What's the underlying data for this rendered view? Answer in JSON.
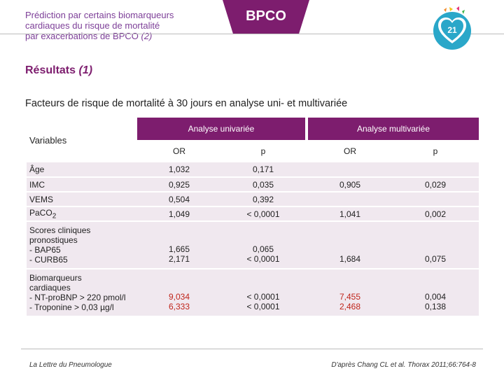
{
  "header": {
    "subtitle_line1": "Prédiction par certains biomarqueurs",
    "subtitle_line2": "cardiaques du risque de mortalité",
    "subtitle_line3": "par exacerbations de BPCO",
    "subtitle_suffix": "(2)",
    "tab_label": "BPCO",
    "page_number": "21"
  },
  "section": {
    "title": "Résultats",
    "title_suffix": "(1)",
    "caption": "Facteurs de risque de mortalité à 30 jours en analyse uni- et multivariée"
  },
  "table": {
    "var_header": "Variables",
    "group_univariate": "Analyse univariée",
    "group_multivariate": "Analyse multivariée",
    "col_or": "OR",
    "col_p": "p",
    "rows": [
      {
        "variable": "Âge",
        "u_or": "1,032",
        "u_p": "0,171",
        "m_or": "",
        "m_p": ""
      },
      {
        "variable": "IMC",
        "u_or": "0,925",
        "u_p": "0,035",
        "m_or": "0,905",
        "m_p": "0,029"
      },
      {
        "variable": "VEMS",
        "u_or": "0,504",
        "u_p": "0,392",
        "m_or": "",
        "m_p": ""
      },
      {
        "variable": "PaCO",
        "variable_sub": "2",
        "u_or": "1,049",
        "u_p": "< 0,0001",
        "m_or": "1,041",
        "m_p": "0,002"
      },
      {
        "variable": "Scores cliniques\npronostiques\n- BAP65\n- CURB65",
        "u_or": "1,665\n2,171",
        "u_p": "0,065\n< 0,0001",
        "m_or": "1,684",
        "m_p": "0,075"
      },
      {
        "variable": "Biomarqueurs\ncardiaques\n- NT-proBNP > 220 pmol/l\n- Troponine > 0,03 µg/l",
        "u_or": "9,034\n6,333",
        "u_p": "< 0,0001\n< 0,0001",
        "m_or": "7,455\n2,468",
        "m_p": "0,004\n0,138"
      }
    ]
  },
  "footer": {
    "left": "La Lettre du Pneumologue",
    "right": "D'après Chang CL et al. Thorax 2011;66:764-8"
  },
  "colors": {
    "accent": "#7d1d6e",
    "row_bg": "#f0e8ef",
    "highlight": "#c0261c"
  },
  "icons": {
    "logo": "heart-badge-icon"
  }
}
